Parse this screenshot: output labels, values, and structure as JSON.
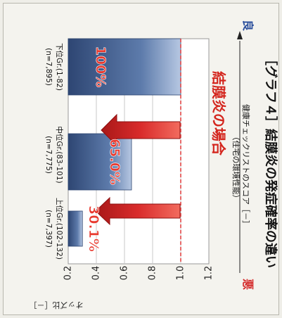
{
  "chart_data": {
    "type": "bar",
    "orientation": "rotated-90-clockwise",
    "title": "［グラフ４］結膜炎の発症確率の違い",
    "condition_label": "結膜炎の場合",
    "xlabel": "健康チェックリストのスコア［－］",
    "xlabel_sub": "（住宅の環境性能）",
    "ylabel": "オッズ比［－］",
    "ylim": [
      0.2,
      1.2
    ],
    "yticks": [
      "1.2",
      "1.0",
      "0.8",
      "0.6",
      "0.4",
      "0.2"
    ],
    "reference_line": 1.0,
    "categories": [
      {
        "name": "下位Gr.(1-82)",
        "n": "(n=7,895)"
      },
      {
        "name": "中位Gr.(83-101)",
        "n": "(n=7,775)"
      },
      {
        "name": "上位Gr.(102-132)",
        "n": "(n=7,397)"
      }
    ],
    "values": [
      1.0,
      0.65,
      0.301
    ],
    "value_labels": [
      "100%",
      "65.0%",
      "30.1%"
    ],
    "scale_bad": "悪",
    "scale_good": "良",
    "colors": {
      "bar": "#3f5d8f",
      "bar_light": "#b6c7e2",
      "arrow": "#d92b2b",
      "arrow_edge": "#8b1010",
      "reference_line": "#e03a3a",
      "condition_label": "#d4261e",
      "value_label": "#e8382d",
      "scale_bad": "#d42b2b",
      "scale_good": "#2a4e9c"
    }
  }
}
